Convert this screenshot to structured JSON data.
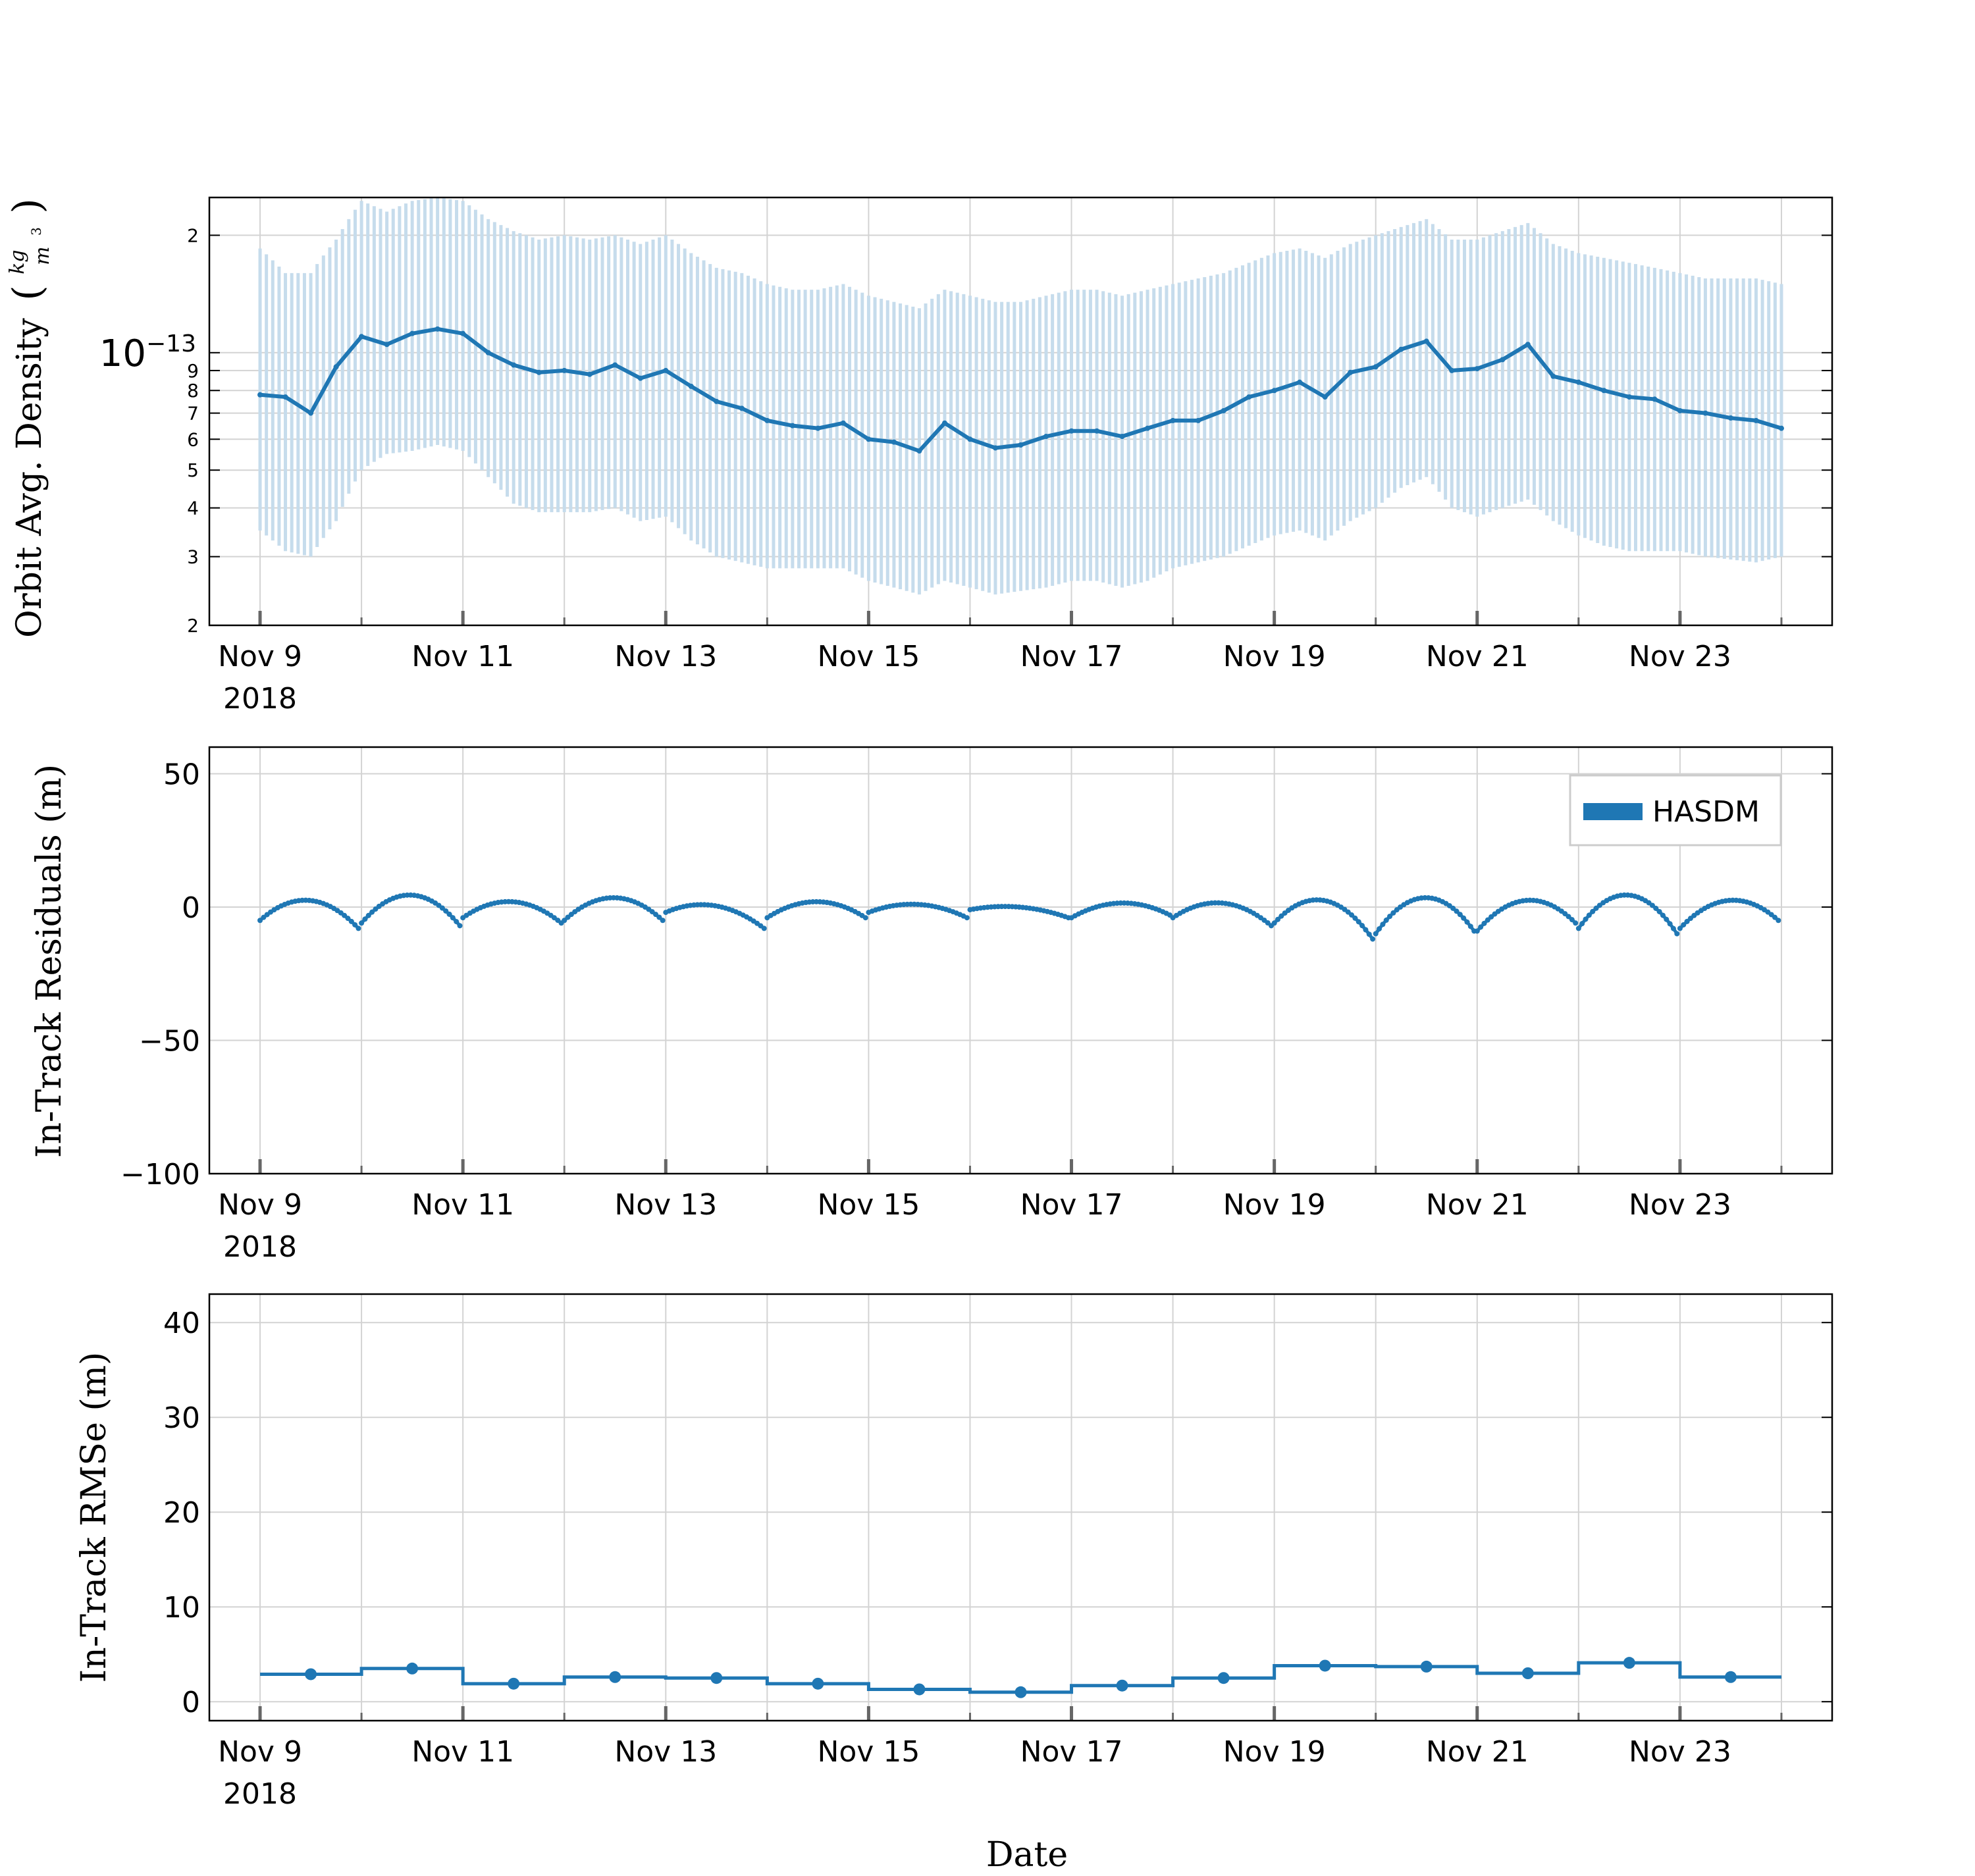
{
  "figure": {
    "xlabel": "Date",
    "date_ticks": [
      "Nov 9",
      "Nov 11",
      "Nov 13",
      "Nov 15",
      "Nov 17",
      "Nov 19",
      "Nov 21",
      "Nov 23"
    ],
    "year_label": "2018"
  },
  "colors": {
    "line": "#1f77b4",
    "band": "#c6dcec",
    "grid": "#d3d3d3",
    "axis": "#000000"
  },
  "chart_data": [
    {
      "id": "density",
      "type": "line",
      "ylabel": "Orbit Avg. Density",
      "yunit_num": "kg",
      "yunit_den": "m",
      "yunit_den_exp": "3",
      "yscale": "log",
      "ylim": [
        2e-14,
        2.5e-13
      ],
      "major_tick_label": "10",
      "major_tick_exp": "−13",
      "minor_tick_labels": [
        "2",
        "3",
        "4",
        "5",
        "6",
        "7",
        "8",
        "9",
        "2"
      ],
      "xlim": [
        "2018-11-08T12:00",
        "2018-11-24T12:00"
      ],
      "grid": true,
      "series": [
        {
          "name": "",
          "x": [
            "2018-11-09T00:00",
            "2018-11-09T06:00",
            "2018-11-09T12:00",
            "2018-11-09T18:00",
            "2018-11-10T00:00",
            "2018-11-10T06:00",
            "2018-11-10T12:00",
            "2018-11-10T18:00",
            "2018-11-11T00:00",
            "2018-11-11T06:00",
            "2018-11-11T12:00",
            "2018-11-11T18:00",
            "2018-11-12T00:00",
            "2018-11-12T06:00",
            "2018-11-12T12:00",
            "2018-11-12T18:00",
            "2018-11-13T00:00",
            "2018-11-13T06:00",
            "2018-11-13T12:00",
            "2018-11-13T18:00",
            "2018-11-14T00:00",
            "2018-11-14T06:00",
            "2018-11-14T12:00",
            "2018-11-14T18:00",
            "2018-11-15T00:00",
            "2018-11-15T06:00",
            "2018-11-15T12:00",
            "2018-11-15T18:00",
            "2018-11-16T00:00",
            "2018-11-16T06:00",
            "2018-11-16T12:00",
            "2018-11-16T18:00",
            "2018-11-17T00:00",
            "2018-11-17T06:00",
            "2018-11-17T12:00",
            "2018-11-17T18:00",
            "2018-11-18T00:00",
            "2018-11-18T06:00",
            "2018-11-18T12:00",
            "2018-11-18T18:00",
            "2018-11-19T00:00",
            "2018-11-19T06:00",
            "2018-11-19T12:00",
            "2018-11-19T18:00",
            "2018-11-20T00:00",
            "2018-11-20T06:00",
            "2018-11-20T12:00",
            "2018-11-20T18:00",
            "2018-11-21T00:00",
            "2018-11-21T06:00",
            "2018-11-21T12:00",
            "2018-11-21T18:00",
            "2018-11-22T00:00",
            "2018-11-22T06:00",
            "2018-11-22T12:00",
            "2018-11-22T18:00",
            "2018-11-23T00:00",
            "2018-11-23T06:00",
            "2018-11-23T12:00",
            "2018-11-23T18:00",
            "2018-11-24T00:00"
          ],
          "y": [
            7.8e-14,
            7.7e-14,
            7e-14,
            9.2e-14,
            1.1e-13,
            1.05e-13,
            1.12e-13,
            1.15e-13,
            1.12e-13,
            1e-13,
            9.3e-14,
            8.9e-14,
            9e-14,
            8.8e-14,
            9.3e-14,
            8.6e-14,
            9e-14,
            8.2e-14,
            7.5e-14,
            7.2e-14,
            6.7e-14,
            6.5e-14,
            6.4e-14,
            6.6e-14,
            6e-14,
            5.9e-14,
            5.6e-14,
            6.6e-14,
            6e-14,
            5.7e-14,
            5.8e-14,
            6.1e-14,
            6.3e-14,
            6.3e-14,
            6.1e-14,
            6.4e-14,
            6.7e-14,
            6.7e-14,
            7.1e-14,
            7.7e-14,
            8e-14,
            8.4e-14,
            7.7e-14,
            8.9e-14,
            9.2e-14,
            1.02e-13,
            1.07e-13,
            9e-14,
            9.1e-14,
            9.6e-14,
            1.05e-13,
            8.7e-14,
            8.4e-14,
            8e-14,
            7.7e-14,
            7.6e-14,
            7.1e-14,
            7e-14,
            6.8e-14,
            6.7e-14,
            6.4e-14
          ],
          "band_low": [
            3.5e-14,
            3.1e-14,
            3e-14,
            3.7e-14,
            5e-14,
            5.5e-14,
            5.6e-14,
            5.8e-14,
            5.6e-14,
            4.8e-14,
            4.1e-14,
            3.9e-14,
            3.9e-14,
            3.9e-14,
            4e-14,
            3.7e-14,
            3.8e-14,
            3.3e-14,
            3e-14,
            2.9e-14,
            2.8e-14,
            2.8e-14,
            2.8e-14,
            2.8e-14,
            2.6e-14,
            2.5e-14,
            2.4e-14,
            2.6e-14,
            2.5e-14,
            2.4e-14,
            2.45e-14,
            2.5e-14,
            2.6e-14,
            2.6e-14,
            2.5e-14,
            2.6e-14,
            2.8e-14,
            2.9e-14,
            3e-14,
            3.2e-14,
            3.4e-14,
            3.5e-14,
            3.3e-14,
            3.7e-14,
            4e-14,
            4.5e-14,
            4.8e-14,
            4e-14,
            3.8e-14,
            4e-14,
            4.2e-14,
            3.7e-14,
            3.4e-14,
            3.2e-14,
            3.1e-14,
            3.1e-14,
            3.1e-14,
            3e-14,
            2.95e-14,
            2.9e-14,
            3e-14
          ],
          "band_high": [
            1.85e-13,
            1.6e-13,
            1.6e-13,
            1.95e-13,
            2.45e-13,
            2.3e-13,
            2.45e-13,
            2.5e-13,
            2.45e-13,
            2.2e-13,
            2.05e-13,
            1.95e-13,
            2e-13,
            1.95e-13,
            2e-13,
            1.9e-13,
            2e-13,
            1.8e-13,
            1.65e-13,
            1.6e-13,
            1.5e-13,
            1.45e-13,
            1.45e-13,
            1.5e-13,
            1.4e-13,
            1.35e-13,
            1.3e-13,
            1.45e-13,
            1.4e-13,
            1.35e-13,
            1.35e-13,
            1.4e-13,
            1.45e-13,
            1.45e-13,
            1.4e-13,
            1.45e-13,
            1.5e-13,
            1.55e-13,
            1.6e-13,
            1.7e-13,
            1.8e-13,
            1.85e-13,
            1.75e-13,
            1.9e-13,
            2e-13,
            2.1e-13,
            2.2e-13,
            1.95e-13,
            1.95e-13,
            2.05e-13,
            2.15e-13,
            1.9e-13,
            1.8e-13,
            1.75e-13,
            1.7e-13,
            1.65e-13,
            1.6e-13,
            1.55e-13,
            1.55e-13,
            1.55e-13,
            1.5e-13
          ]
        }
      ]
    },
    {
      "id": "residuals",
      "type": "line",
      "ylabel": "In-Track Residuals (m)",
      "ylim": [
        -100,
        60
      ],
      "yticks": [
        50,
        0,
        -50,
        -100
      ],
      "ytick_labels": [
        "50",
        "0",
        "−50",
        "−100"
      ],
      "xlim": [
        "2018-11-08T12:00",
        "2018-11-24T12:00"
      ],
      "grid": true,
      "legend": {
        "position": "upper-right",
        "entries": [
          "HASDM"
        ]
      },
      "series": [
        {
          "name": "HASDM",
          "arcs": [
            {
              "start": "2018-11-09T00:00",
              "end": "2018-11-10T00:00",
              "start_val": -5,
              "peak": 2.5,
              "end_val": -8
            },
            {
              "start": "2018-11-10T00:00",
              "end": "2018-11-11T00:00",
              "start_val": -6,
              "peak": 4.5,
              "end_val": -7
            },
            {
              "start": "2018-11-11T00:00",
              "end": "2018-11-12T00:00",
              "start_val": -4,
              "peak": 2,
              "end_val": -6
            },
            {
              "start": "2018-11-12T00:00",
              "end": "2018-11-13T00:00",
              "start_val": -5,
              "peak": 3.5,
              "end_val": -5
            },
            {
              "start": "2018-11-13T00:00",
              "end": "2018-11-14T00:00",
              "start_val": -2,
              "peak": 0.5,
              "end_val": -8
            },
            {
              "start": "2018-11-14T00:00",
              "end": "2018-11-15T00:00",
              "start_val": -4,
              "peak": 2,
              "end_val": -4
            },
            {
              "start": "2018-11-15T00:00",
              "end": "2018-11-16T00:00",
              "start_val": -2,
              "peak": 1,
              "end_val": -4
            },
            {
              "start": "2018-11-16T00:00",
              "end": "2018-11-17T00:00",
              "start_val": -1,
              "peak": 0,
              "end_val": -4
            },
            {
              "start": "2018-11-17T00:00",
              "end": "2018-11-18T00:00",
              "start_val": -4,
              "peak": 1.5,
              "end_val": -3
            },
            {
              "start": "2018-11-18T00:00",
              "end": "2018-11-19T00:00",
              "start_val": -4,
              "peak": 1.5,
              "end_val": -7
            },
            {
              "start": "2018-11-19T00:00",
              "end": "2018-11-20T00:00",
              "start_val": -6,
              "peak": 2.5,
              "end_val": -12
            },
            {
              "start": "2018-11-20T00:00",
              "end": "2018-11-21T00:00",
              "start_val": -10,
              "peak": 3.5,
              "end_val": -9
            },
            {
              "start": "2018-11-21T00:00",
              "end": "2018-11-22T00:00",
              "start_val": -9,
              "peak": 2.5,
              "end_val": -6
            },
            {
              "start": "2018-11-22T00:00",
              "end": "2018-11-23T00:00",
              "start_val": -8,
              "peak": 4.5,
              "end_val": -10
            },
            {
              "start": "2018-11-23T00:00",
              "end": "2018-11-24T00:00",
              "start_val": -8,
              "peak": 2.5,
              "end_val": -5
            }
          ]
        }
      ]
    },
    {
      "id": "rmse",
      "type": "line",
      "ylabel": "In-Track RMSe (m)",
      "ylim": [
        -2,
        43
      ],
      "yticks": [
        40,
        30,
        20,
        10,
        0
      ],
      "ytick_labels": [
        "40",
        "30",
        "20",
        "10",
        "0"
      ],
      "xlim": [
        "2018-11-08T12:00",
        "2018-11-24T12:00"
      ],
      "grid": true,
      "series": [
        {
          "name": "",
          "step": true,
          "x": [
            "2018-11-09T12:00",
            "2018-11-10T12:00",
            "2018-11-11T12:00",
            "2018-11-12T12:00",
            "2018-11-13T12:00",
            "2018-11-14T12:00",
            "2018-11-15T12:00",
            "2018-11-16T12:00",
            "2018-11-17T12:00",
            "2018-11-18T12:00",
            "2018-11-19T12:00",
            "2018-11-20T12:00",
            "2018-11-21T12:00",
            "2018-11-22T12:00",
            "2018-11-23T12:00"
          ],
          "y": [
            2.9,
            3.5,
            1.9,
            2.6,
            2.5,
            1.9,
            1.3,
            1.0,
            1.7,
            2.5,
            3.8,
            3.7,
            3.0,
            4.1,
            2.6
          ]
        }
      ]
    }
  ]
}
